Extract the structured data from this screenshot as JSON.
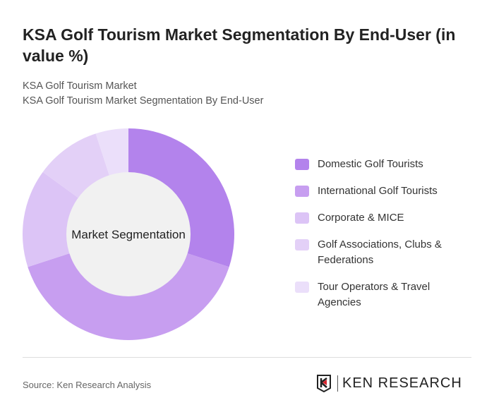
{
  "header": {
    "title": "KSA Golf Tourism Market Segmentation By End-User (in value %)",
    "subtitle1": "KSA Golf Tourism Market",
    "subtitle2": "KSA Golf Tourism Market Segmentation By End-User"
  },
  "chart_data": {
    "type": "pie",
    "donut": true,
    "center_label": "Market Segmentation",
    "categories": [
      "Domestic Golf Tourists",
      "International Golf Tourists",
      "Corporate & MICE",
      "Golf Associations, Clubs & Federations",
      "Tour Operators & Travel Agencies"
    ],
    "values": [
      30,
      40,
      15,
      10,
      5
    ],
    "colors": [
      "#b383ec",
      "#c79ef0",
      "#dcc4f6",
      "#e3d0f7",
      "#ebdffa"
    ],
    "legend_position": "right"
  },
  "footer": {
    "source": "Source: Ken Research Analysis",
    "logo": "KEN RESEARCH"
  }
}
